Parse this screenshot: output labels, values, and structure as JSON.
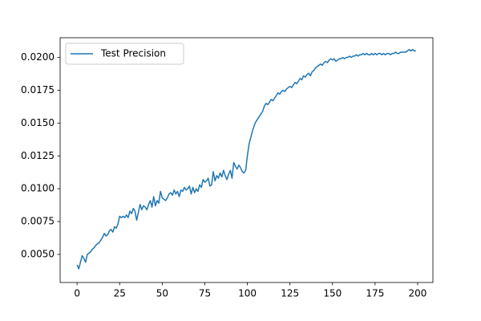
{
  "chart_data": {
    "type": "line",
    "x": [
      0,
      1,
      2,
      3,
      4,
      5,
      6,
      7,
      8,
      9,
      10,
      11,
      12,
      13,
      14,
      15,
      16,
      17,
      18,
      19,
      20,
      21,
      22,
      23,
      24,
      25,
      26,
      27,
      28,
      29,
      30,
      31,
      32,
      33,
      34,
      35,
      36,
      37,
      38,
      39,
      40,
      41,
      42,
      43,
      44,
      45,
      46,
      47,
      48,
      49,
      50,
      51,
      52,
      53,
      54,
      55,
      56,
      57,
      58,
      59,
      60,
      61,
      62,
      63,
      64,
      65,
      66,
      67,
      68,
      69,
      70,
      71,
      72,
      73,
      74,
      75,
      76,
      77,
      78,
      79,
      80,
      81,
      82,
      83,
      84,
      85,
      86,
      87,
      88,
      89,
      90,
      91,
      92,
      93,
      94,
      95,
      96,
      97,
      98,
      99,
      100,
      101,
      102,
      103,
      104,
      105,
      106,
      107,
      108,
      109,
      110,
      111,
      112,
      113,
      114,
      115,
      116,
      117,
      118,
      119,
      120,
      121,
      122,
      123,
      124,
      125,
      126,
      127,
      128,
      129,
      130,
      131,
      132,
      133,
      134,
      135,
      136,
      137,
      138,
      139,
      140,
      141,
      142,
      143,
      144,
      145,
      146,
      147,
      148,
      149,
      150,
      151,
      152,
      153,
      154,
      155,
      156,
      157,
      158,
      159,
      160,
      161,
      162,
      163,
      164,
      165,
      166,
      167,
      168,
      169,
      170,
      171,
      172,
      173,
      174,
      175,
      176,
      177,
      178,
      179,
      180,
      181,
      182,
      183,
      184,
      185,
      186,
      187,
      188,
      189,
      190,
      191,
      192,
      193,
      194,
      195,
      196,
      197,
      198,
      199
    ],
    "series": [
      {
        "name": "Test Precision",
        "color": "#1f77b4",
        "values": [
          0.0042,
          0.0039,
          0.0044,
          0.0049,
          0.0047,
          0.0044,
          0.005,
          0.0051,
          0.0052,
          0.0054,
          0.0055,
          0.0057,
          0.0058,
          0.0059,
          0.0061,
          0.0063,
          0.0066,
          0.0064,
          0.0065,
          0.0068,
          0.0069,
          0.0067,
          0.0071,
          0.007,
          0.0073,
          0.0079,
          0.0078,
          0.0079,
          0.0078,
          0.008,
          0.0078,
          0.0083,
          0.0081,
          0.0085,
          0.0083,
          0.0076,
          0.0082,
          0.0088,
          0.0084,
          0.0087,
          0.0086,
          0.0084,
          0.0088,
          0.0091,
          0.0086,
          0.0094,
          0.0087,
          0.0091,
          0.0089,
          0.0098,
          0.0093,
          0.0092,
          0.0091,
          0.0093,
          0.0096,
          0.0097,
          0.0095,
          0.0099,
          0.0096,
          0.0098,
          0.0094,
          0.0099,
          0.0098,
          0.0101,
          0.0099,
          0.01,
          0.0102,
          0.0096,
          0.0101,
          0.0097,
          0.01,
          0.0098,
          0.0103,
          0.0101,
          0.0107,
          0.0105,
          0.0106,
          0.0108,
          0.0102,
          0.0103,
          0.0113,
          0.0106,
          0.011,
          0.0108,
          0.0112,
          0.0109,
          0.0114,
          0.011,
          0.0107,
          0.0111,
          0.0114,
          0.0108,
          0.012,
          0.0117,
          0.0115,
          0.0118,
          0.0116,
          0.0113,
          0.0112,
          0.0114,
          0.0125,
          0.0134,
          0.0139,
          0.0144,
          0.0148,
          0.0151,
          0.0153,
          0.0155,
          0.0157,
          0.0159,
          0.0163,
          0.0165,
          0.0164,
          0.0166,
          0.0168,
          0.0167,
          0.0169,
          0.0171,
          0.0173,
          0.0172,
          0.0174,
          0.0175,
          0.0174,
          0.0176,
          0.0177,
          0.0178,
          0.0177,
          0.0179,
          0.0181,
          0.018,
          0.0182,
          0.0184,
          0.0183,
          0.0186,
          0.0185,
          0.0187,
          0.0188,
          0.0186,
          0.0189,
          0.019,
          0.0192,
          0.0193,
          0.0194,
          0.0195,
          0.0194,
          0.0196,
          0.0197,
          0.0196,
          0.0198,
          0.0199,
          0.0198,
          0.0199,
          0.0197,
          0.0198,
          0.0199,
          0.0199,
          0.02,
          0.0199,
          0.02,
          0.02,
          0.0201,
          0.02,
          0.0201,
          0.0201,
          0.0202,
          0.0201,
          0.0202,
          0.0202,
          0.0203,
          0.0202,
          0.0203,
          0.0202,
          0.0202,
          0.0203,
          0.0202,
          0.0203,
          0.0202,
          0.0203,
          0.0203,
          0.0202,
          0.0203,
          0.0202,
          0.0203,
          0.0203,
          0.0202,
          0.0203,
          0.0203,
          0.0204,
          0.0203,
          0.0203,
          0.0204,
          0.0204,
          0.0204,
          0.0204,
          0.0205,
          0.0206,
          0.0205,
          0.0206,
          0.0205,
          0.0205
        ]
      }
    ],
    "xlim": [
      -9.95,
      208.95
    ],
    "xticks": [
      0,
      25,
      50,
      75,
      100,
      125,
      150,
      175,
      200
    ],
    "ylim": [
      0.00286,
      0.0215
    ],
    "yticks": [
      {
        "value": 0.005,
        "label": "0.0050"
      },
      0.0075,
      {
        "value": 0.01,
        "label": "0.0100"
      },
      0.0125,
      {
        "value": 0.015,
        "label": "0.0150"
      },
      0.0175,
      {
        "value": 0.02,
        "label": "0.0200"
      }
    ],
    "legend": "upper left"
  }
}
